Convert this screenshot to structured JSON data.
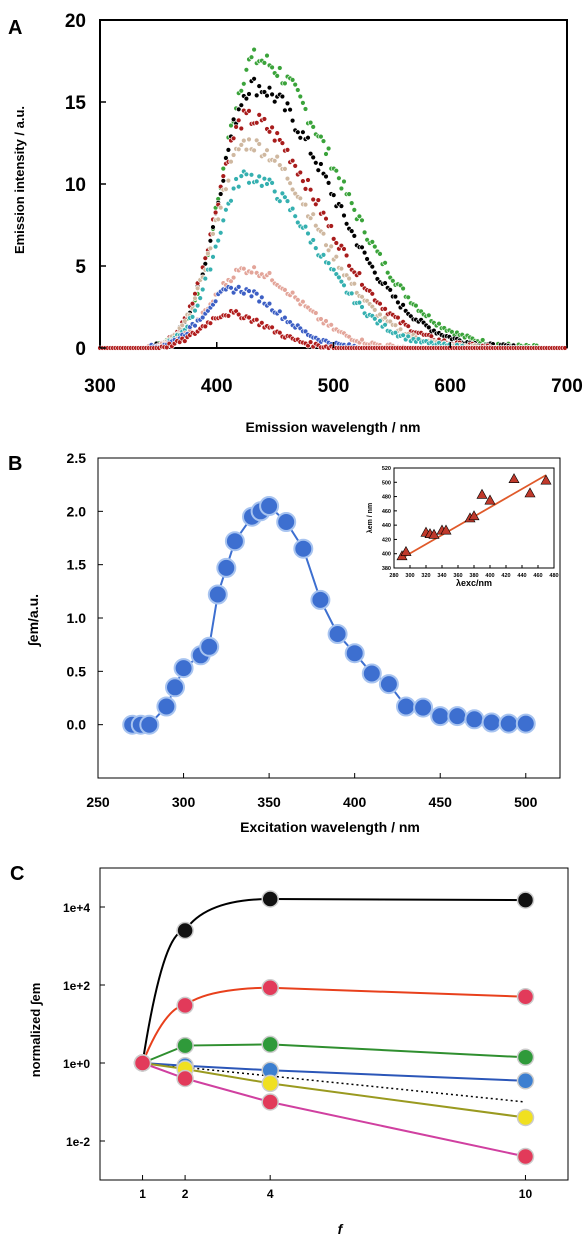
{
  "panels": {
    "a": {
      "letter": "A"
    },
    "b": {
      "letter": "B"
    },
    "c": {
      "letter": "C"
    }
  },
  "chart_data": [
    {
      "id": "A",
      "type": "scatter",
      "title": "",
      "xlabel": "Emission wavelength / nm",
      "ylabel": "Emission intensity / a.u.",
      "xlim": [
        300,
        700
      ],
      "ylim": [
        0,
        20
      ],
      "xticks": [
        "300",
        "400",
        "500",
        "600",
        "700"
      ],
      "yticks": [
        "0",
        "5",
        "10",
        "15",
        "20"
      ],
      "grid": false,
      "legend": "none",
      "series": [
        {
          "color": "#3aa33a",
          "peak_x": 432,
          "peak_y": 17.6,
          "start_x": 345,
          "end_x": 650,
          "right_width": 95,
          "left_width": 48
        },
        {
          "color": "#000000",
          "peak_x": 430,
          "peak_y": 16.0,
          "start_x": 348,
          "end_x": 650,
          "right_width": 90,
          "left_width": 48
        },
        {
          "color": "#a81c1c",
          "peak_x": 425,
          "peak_y": 14.0,
          "start_x": 350,
          "end_x": 640,
          "right_width": 85,
          "left_width": 46
        },
        {
          "color": "#cfb8a0",
          "peak_x": 425,
          "peak_y": 12.5,
          "start_x": 352,
          "end_x": 630,
          "right_width": 80,
          "left_width": 46
        },
        {
          "color": "#35b0b0",
          "peak_x": 425,
          "peak_y": 10.5,
          "start_x": 352,
          "end_x": 630,
          "right_width": 78,
          "left_width": 45
        },
        {
          "color": "#e3a59a",
          "peak_x": 425,
          "peak_y": 4.8,
          "start_x": 330,
          "end_x": 570,
          "right_width": 60,
          "left_width": 50
        },
        {
          "color": "#3d5fc4",
          "peak_x": 415,
          "peak_y": 3.6,
          "start_x": 330,
          "end_x": 540,
          "right_width": 50,
          "left_width": 45
        },
        {
          "color": "#b01d1d",
          "peak_x": 410,
          "peak_y": 2.1,
          "start_x": 330,
          "end_x": 520,
          "right_width": 45,
          "left_width": 40
        }
      ]
    },
    {
      "id": "B",
      "type": "line",
      "title": "",
      "xlabel": "Excitation wavelength / nm",
      "ylabel": "∫em/a.u.",
      "xlim": [
        250,
        520
      ],
      "ylim": [
        -0.5,
        2.5
      ],
      "xticks": [
        "250",
        "300",
        "350",
        "400",
        "450",
        "500"
      ],
      "yticks": [
        "0.0",
        "0.5",
        "1.0",
        "1.5",
        "2.0",
        "2.5"
      ],
      "grid": false,
      "legend": "none",
      "marker_color": "#3d6fd0",
      "x": [
        270,
        275,
        280,
        290,
        295,
        300,
        310,
        315,
        320,
        325,
        330,
        340,
        345,
        350,
        360,
        370,
        380,
        390,
        400,
        410,
        420,
        430,
        440,
        450,
        460,
        470,
        480,
        490,
        500
      ],
      "y": [
        0.0,
        0.0,
        0.0,
        0.17,
        0.35,
        0.53,
        0.65,
        0.73,
        1.22,
        1.47,
        1.72,
        1.95,
        2.0,
        2.05,
        1.9,
        1.65,
        1.17,
        0.85,
        0.67,
        0.48,
        0.38,
        0.17,
        0.16,
        0.08,
        0.08,
        0.05,
        0.02,
        0.01,
        0.01
      ]
    },
    {
      "id": "B-inset",
      "type": "scatter",
      "title": "",
      "xlabel": "λexc/nm",
      "ylabel": "λem / nm",
      "xlim": [
        280,
        480
      ],
      "ylim": [
        380,
        520
      ],
      "xticks": [
        "280",
        "300",
        "320",
        "340",
        "360",
        "380",
        "400",
        "420",
        "440",
        "460",
        "480"
      ],
      "yticks": [
        "380",
        "400",
        "420",
        "440",
        "460",
        "480",
        "500",
        "520"
      ],
      "marker_color": "#c0392b",
      "fit_color": "#e05a2a",
      "fit_line": {
        "x": [
          290,
          470
        ],
        "y": [
          394,
          510
        ]
      },
      "x": [
        290,
        295,
        320,
        325,
        330,
        340,
        345,
        375,
        380,
        390,
        400,
        430,
        450,
        470
      ],
      "y": [
        397,
        403,
        430,
        428,
        427,
        433,
        433,
        450,
        453,
        483,
        475,
        505,
        485,
        503
      ]
    },
    {
      "id": "C",
      "type": "line",
      "title": "",
      "xlabel": "f",
      "ylabel": "normalized ∫em",
      "scale": "log",
      "xlim": [
        0,
        11
      ],
      "ylim": [
        0.001,
        100000
      ],
      "xticks": [
        "1",
        "2",
        "4",
        "10"
      ],
      "yticks": [
        "1e-2",
        "1e+0",
        "1e+2",
        "1e+4"
      ],
      "grid": false,
      "legend": "none",
      "x": [
        1,
        2,
        4,
        10
      ],
      "series": [
        {
          "color": "#000000",
          "fill": "#111111",
          "values": [
            1,
            2500,
            16000,
            15000
          ]
        },
        {
          "color": "#e8401c",
          "fill": "#e23a5a",
          "values": [
            1,
            30,
            85,
            50
          ]
        },
        {
          "color": "#2f8f2f",
          "fill": "#2f9a3a",
          "values": [
            1,
            2.8,
            3,
            1.4
          ]
        },
        {
          "color": "#2b56b8",
          "fill": "#3d7fd0",
          "values": [
            1,
            0.85,
            0.65,
            0.35
          ]
        },
        {
          "color": "#9a9a20",
          "fill": "#f0e020",
          "values": [
            1,
            0.7,
            0.3,
            0.04
          ]
        },
        {
          "color": "#d040a0",
          "fill": "#e23a5a",
          "values": [
            1,
            0.4,
            0.1,
            0.004
          ]
        }
      ],
      "reference_line": {
        "values": [
          1,
          0.1
        ]
      }
    }
  ]
}
